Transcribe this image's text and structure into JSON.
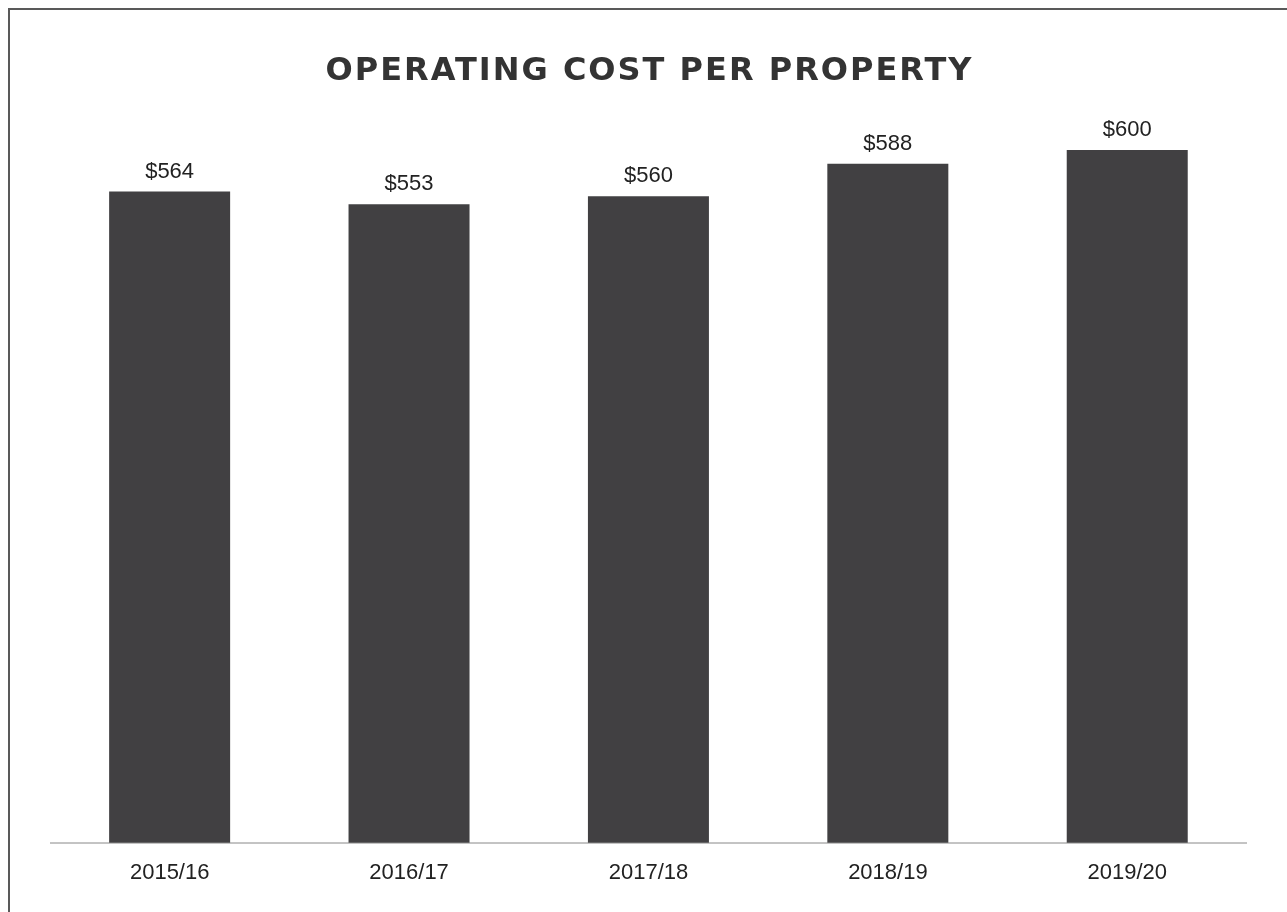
{
  "chart_data": {
    "type": "bar",
    "title": "OPERATING COST PER PROPERTY",
    "categories": [
      "2015/16",
      "2016/17",
      "2017/18",
      "2018/19",
      "2019/20"
    ],
    "values": [
      564,
      553,
      560,
      588,
      600
    ],
    "value_labels": [
      "$564",
      "$553",
      "$560",
      "$588",
      "$600"
    ],
    "color": "#414042",
    "grid": false,
    "legend": false
  }
}
